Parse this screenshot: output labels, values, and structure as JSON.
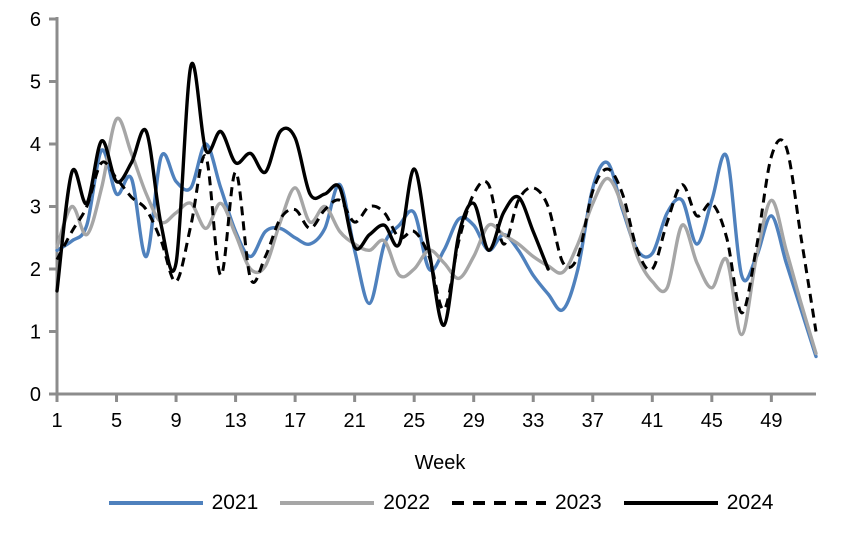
{
  "chart_data": {
    "type": "line",
    "title": "",
    "x_axis": {
      "label": "Week",
      "min": 1,
      "max": 52,
      "tick_labels": [
        1,
        5,
        9,
        13,
        17,
        21,
        25,
        29,
        33,
        37,
        41,
        45,
        49
      ]
    },
    "y_axis": {
      "label": "",
      "min": 0,
      "max": 6,
      "tick_labels": [
        0,
        1,
        2,
        3,
        4,
        5,
        6
      ]
    },
    "grid": false,
    "legend_position": "bottom",
    "axis_color": "#8C8C8C",
    "text_color": "#000000",
    "series": [
      {
        "name": "2021",
        "color": "#4F81BD",
        "style": "solid",
        "start_week": 1,
        "values": [
          2.3,
          2.45,
          2.7,
          3.9,
          3.2,
          3.45,
          2.2,
          3.8,
          3.4,
          3.3,
          4.0,
          3.3,
          2.6,
          2.2,
          2.6,
          2.65,
          2.5,
          2.4,
          2.65,
          3.35,
          2.3,
          1.45,
          2.4,
          2.7,
          2.9,
          2.0,
          2.3,
          2.8,
          2.7,
          2.3,
          2.55,
          2.3,
          1.9,
          1.6,
          1.35,
          2.0,
          3.3,
          3.7,
          2.95,
          2.3,
          2.25,
          2.9,
          3.1,
          2.4,
          3.1,
          3.8,
          1.9,
          2.2,
          2.85,
          2.1,
          1.35,
          0.6
        ]
      },
      {
        "name": "2022",
        "color": "#A6A6A6",
        "style": "solid",
        "start_week": 1,
        "values": [
          2.35,
          3.0,
          2.55,
          3.3,
          4.4,
          3.85,
          3.2,
          2.75,
          2.9,
          3.05,
          2.65,
          3.05,
          2.55,
          2.0,
          2.05,
          2.75,
          3.3,
          2.75,
          3.0,
          2.6,
          2.4,
          2.3,
          2.45,
          1.9,
          2.0,
          2.3,
          2.1,
          1.85,
          2.2,
          2.7,
          2.55,
          2.4,
          2.2,
          2.05,
          1.95,
          2.4,
          3.05,
          3.45,
          3.0,
          2.2,
          1.8,
          1.7,
          2.7,
          2.1,
          1.7,
          2.15,
          0.95,
          2.2,
          3.1,
          2.3,
          1.45,
          0.65
        ]
      },
      {
        "name": "2023",
        "color": "#000000",
        "style": "dashed",
        "start_week": 1,
        "values": [
          2.15,
          2.6,
          3.0,
          3.7,
          3.45,
          3.15,
          2.95,
          2.45,
          1.8,
          2.7,
          3.8,
          1.9,
          3.55,
          1.85,
          2.2,
          2.8,
          2.95,
          2.65,
          2.95,
          3.1,
          2.75,
          3.0,
          2.9,
          2.5,
          2.6,
          2.2,
          1.35,
          2.45,
          3.2,
          3.35,
          2.4,
          3.1,
          3.3,
          3.0,
          2.1,
          2.2,
          3.25,
          3.6,
          3.2,
          2.3,
          2.0,
          2.75,
          3.35,
          2.85,
          3.05,
          2.5,
          1.3,
          2.35,
          3.8,
          3.95,
          2.5,
          1.0
        ]
      },
      {
        "name": "2024",
        "color": "#000000",
        "style": "solid",
        "start_week": 1,
        "values": [
          1.65,
          3.55,
          3.05,
          4.05,
          3.4,
          3.7,
          4.2,
          2.7,
          2.1,
          5.25,
          3.9,
          4.2,
          3.7,
          3.85,
          3.55,
          4.2,
          4.1,
          3.2,
          3.2,
          3.3,
          2.35,
          2.55,
          2.7,
          2.4,
          3.6,
          2.3,
          1.1,
          2.55,
          3.05,
          2.3,
          2.9,
          3.15,
          2.6,
          2.0
        ]
      }
    ]
  },
  "legend": {
    "items": [
      "2021",
      "2022",
      "2023",
      "2024"
    ]
  }
}
